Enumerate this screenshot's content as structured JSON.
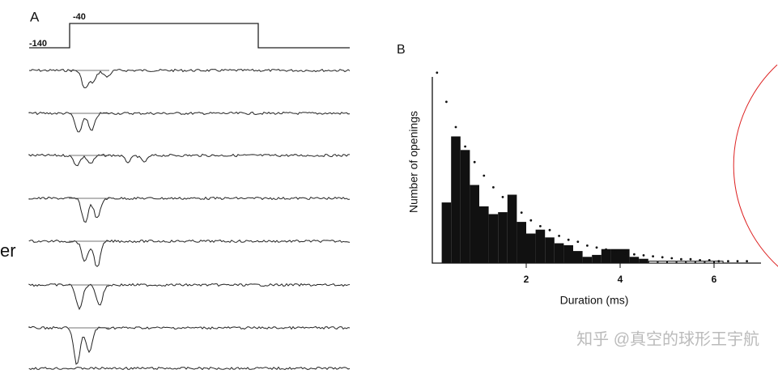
{
  "panel_a": {
    "label": "A",
    "step_high": "-40",
    "step_low": "-140"
  },
  "side_text": "er",
  "watermark": "知乎 @真空的球形王宇航",
  "chart_data": {
    "type": "histogram",
    "label": "B",
    "xlabel": "Duration (ms)",
    "ylabel": "Number of openings",
    "bins": [
      0.2,
      0.4,
      0.6,
      0.8,
      1.0,
      1.2,
      1.4,
      1.6,
      1.8,
      2.0,
      2.2,
      2.4,
      2.6,
      2.8,
      3.0,
      3.2,
      3.4,
      3.6,
      3.8,
      4.0,
      4.2,
      4.4,
      4.6,
      4.8,
      5.0,
      5.2,
      5.4,
      5.6,
      5.8,
      6.0,
      6.2
    ],
    "values": [
      31,
      65,
      58,
      40,
      29,
      25,
      26,
      35,
      21,
      15,
      17,
      13,
      10,
      9,
      6,
      3,
      4,
      7,
      7,
      7,
      3,
      2,
      1,
      1,
      1,
      1,
      1,
      1,
      1,
      1
    ],
    "fit_x": [
      0.1,
      0.3,
      0.5,
      0.7,
      0.9,
      1.1,
      1.3,
      1.5,
      1.7,
      1.9,
      2.1,
      2.3,
      2.5,
      2.7,
      2.9,
      3.1,
      3.3,
      3.5,
      3.7,
      3.9,
      4.1,
      4.3,
      4.5,
      4.7,
      4.9,
      5.1,
      5.3,
      5.5,
      5.7,
      5.9,
      6.1,
      6.3,
      6.5,
      6.7
    ],
    "fit_values": [
      98,
      83,
      70,
      60,
      52,
      45,
      39,
      34,
      30,
      26,
      22,
      19,
      17,
      14,
      12,
      11,
      9,
      8,
      7,
      6,
      5,
      4.5,
      4,
      3.5,
      3,
      2.5,
      2,
      2,
      1.5,
      1.5,
      1,
      1,
      1,
      1
    ],
    "xlim": [
      0,
      7
    ],
    "ylim": [
      0,
      100
    ],
    "xticks": [
      2,
      4,
      6
    ],
    "color": "#111"
  }
}
